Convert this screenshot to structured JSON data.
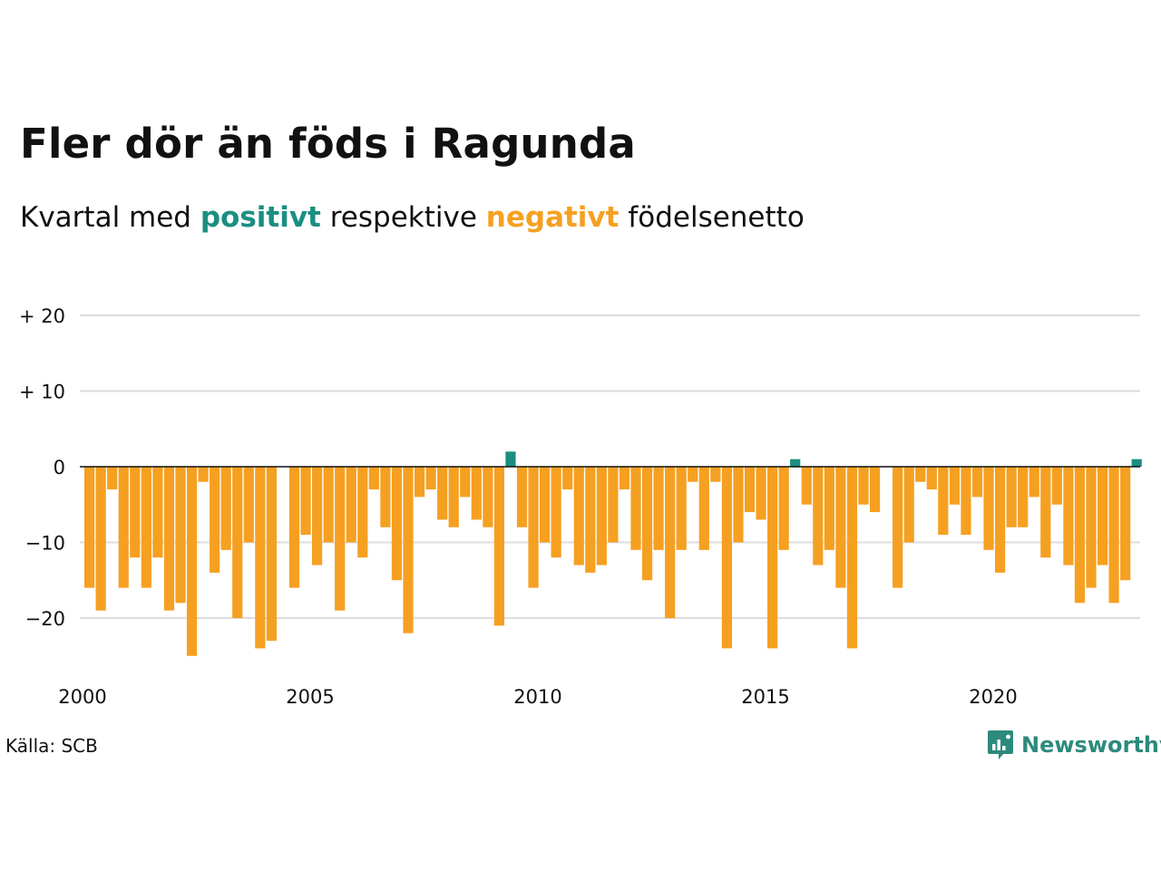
{
  "header": {
    "title": "Fler dör än föds i Ragunda",
    "subtitle_prefix": "Kvartal med ",
    "subtitle_pos": "positivt",
    "subtitle_mid": " respektive ",
    "subtitle_neg": "negativt",
    "subtitle_suffix": " födelsenetto"
  },
  "footer": {
    "source": "Källa: SCB",
    "brand": "Newsworthy",
    "brand_icon": "newsworthy-logo-icon"
  },
  "colors": {
    "positive": "#1a8f80",
    "negative": "#f6a021",
    "grid": "#dddddd",
    "zero_line": "#111111",
    "brand": "#2d8a7c"
  },
  "chart_data": {
    "type": "bar",
    "x_start": "2000 Q1",
    "x_step": "quarter",
    "values": [
      -16,
      -19,
      -3,
      -16,
      -12,
      -16,
      -12,
      -19,
      -18,
      -25,
      -2,
      -14,
      -11,
      -20,
      -10,
      -24,
      -23,
      0,
      -16,
      -9,
      -13,
      -10,
      -19,
      -10,
      -12,
      -3,
      -8,
      -15,
      -22,
      -4,
      -3,
      -7,
      -8,
      -4,
      -7,
      -8,
      -21,
      2,
      -8,
      -16,
      -10,
      -12,
      -3,
      -13,
      -14,
      -13,
      -10,
      -3,
      -11,
      -15,
      -11,
      -20,
      -11,
      -2,
      -11,
      -2,
      -24,
      -10,
      -6,
      -7,
      -24,
      -11,
      1,
      -5,
      -13,
      -11,
      -16,
      -24,
      -5,
      -6,
      0,
      -16,
      -10,
      -2,
      -3,
      -9,
      -5,
      -9,
      -4,
      -11,
      -14,
      -8,
      -8,
      -4,
      -12,
      -5,
      -13,
      -18,
      -16,
      -13,
      -18,
      -15,
      1
    ],
    "y_ticks": [
      20,
      10,
      0,
      -10,
      -20
    ],
    "y_tick_labels": [
      "+ 20",
      "+ 10",
      "0",
      "−10",
      "−20"
    ],
    "x_ticks": [
      2000,
      2005,
      2010,
      2015,
      2020
    ],
    "x_tick_labels": [
      "2000",
      "2005",
      "2010",
      "2015",
      "2020"
    ],
    "ylim": [
      -26,
      20
    ],
    "grid": true,
    "xlabel": "",
    "ylabel": ""
  }
}
